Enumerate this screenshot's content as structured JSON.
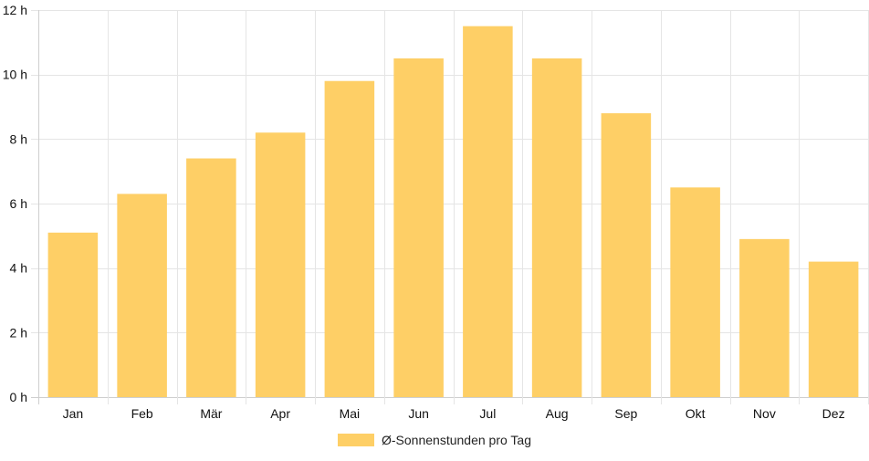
{
  "chart_data": {
    "type": "bar",
    "categories": [
      "Jan",
      "Feb",
      "Mär",
      "Apr",
      "Mai",
      "Jun",
      "Jul",
      "Aug",
      "Sep",
      "Okt",
      "Nov",
      "Dez"
    ],
    "series": [
      {
        "name": "Ø-Sonnenstunden pro Tag",
        "values": [
          5.1,
          6.3,
          7.4,
          8.2,
          9.8,
          10.5,
          11.5,
          10.5,
          8.8,
          6.5,
          4.9,
          4.2
        ]
      }
    ],
    "y_ticks": [
      "0 h",
      "2 h",
      "4 h",
      "6 h",
      "8 h",
      "10 h",
      "12 h"
    ],
    "y_tick_values": [
      0,
      2,
      4,
      6,
      8,
      10,
      12
    ],
    "ylim": [
      0,
      12
    ],
    "grid": true,
    "legend_position": "bottom",
    "colors": {
      "bar": "#fecf66",
      "grid": "#e5e5e5",
      "axis": "#cfcfcf"
    }
  }
}
